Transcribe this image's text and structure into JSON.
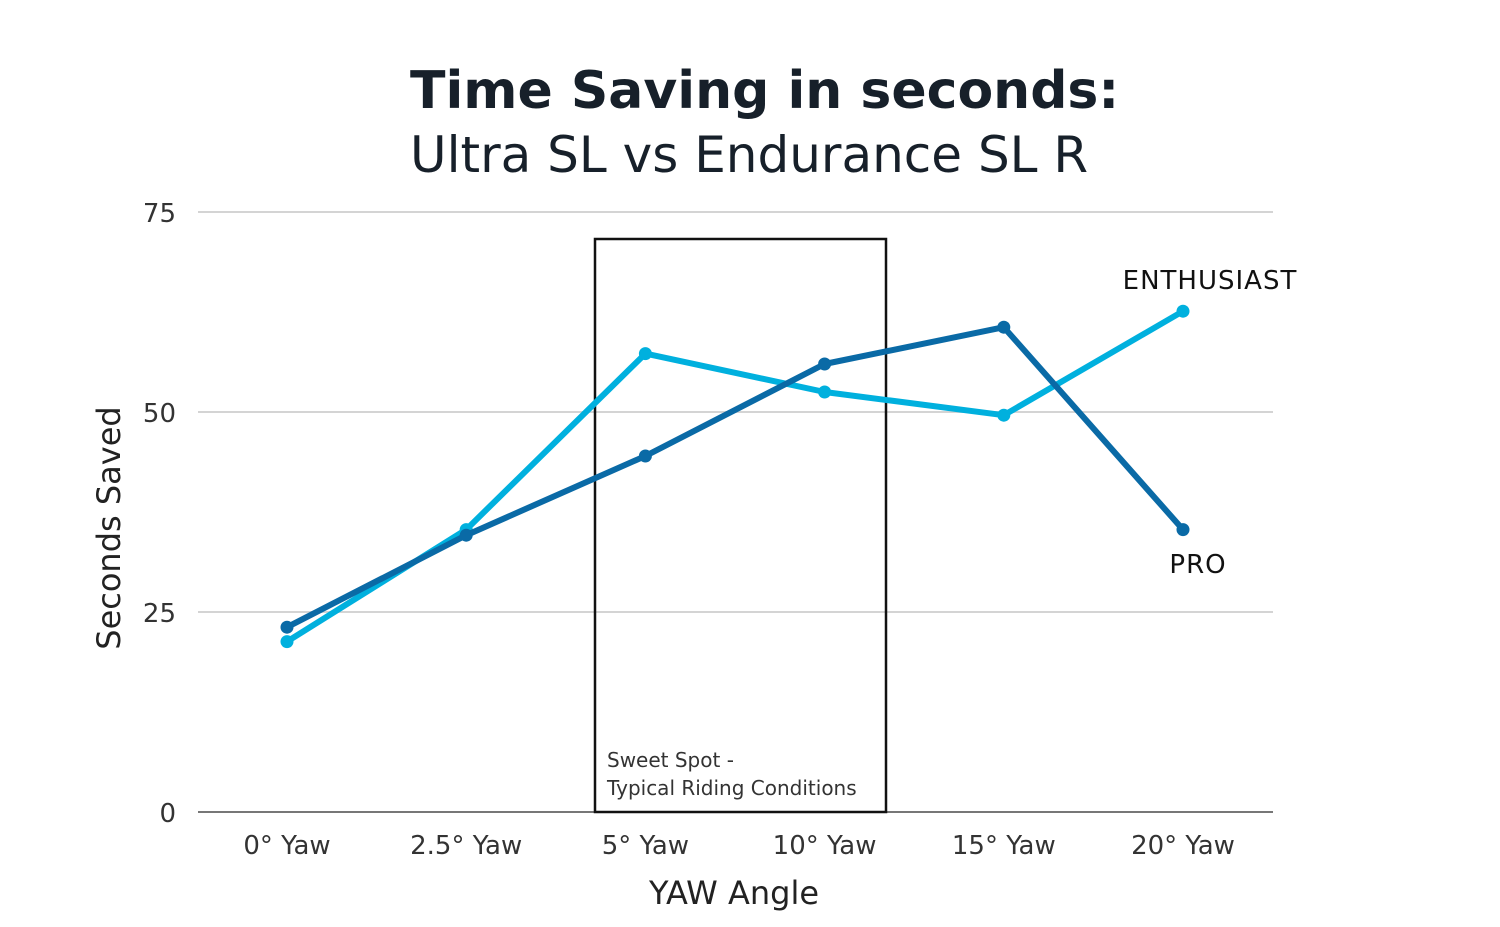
{
  "chart_data": {
    "type": "line",
    "title": "Time Saving in seconds:",
    "subtitle": "Ultra SL vs Endurance SL R",
    "xlabel": "YAW Angle",
    "ylabel": "Seconds Saved",
    "categories": [
      "0° Yaw",
      "2.5° Yaw",
      "5° Yaw",
      "10° Yaw",
      "15° Yaw",
      "20° Yaw"
    ],
    "ylim": [
      0,
      75
    ],
    "yticks": [
      0,
      25,
      50,
      75
    ],
    "grid": true,
    "series": [
      {
        "name": "ENTHUSIAST",
        "color": "#00b0de",
        "values": [
          21.3,
          35.3,
          57.3,
          52.5,
          49.6,
          62.6
        ]
      },
      {
        "name": "PRO",
        "color": "#0a6aa6",
        "values": [
          23.1,
          34.6,
          44.5,
          56.0,
          60.6,
          35.3
        ]
      }
    ],
    "annotation": {
      "line1": "Sweet Spot -",
      "line2": "Typical Riding Conditions"
    }
  }
}
